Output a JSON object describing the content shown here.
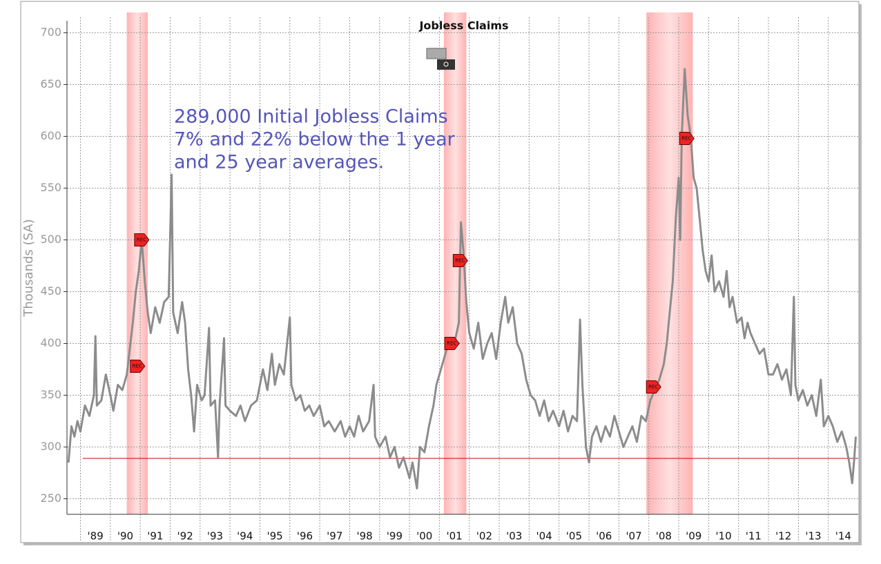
{
  "chart_data": {
    "type": "line",
    "title": "Jobless Claims",
    "y_label": "Thousands (SA)",
    "annotation": [
      "289,000 Initial Jobless Claims",
      "7% and 22% below the 1 year",
      "and 25 year averages."
    ],
    "color": "#8c8c8c",
    "x": [
      1988.6,
      1988.7,
      1988.8,
      1988.9,
      1989.0,
      1989.15,
      1989.3,
      1989.45,
      1989.5,
      1989.55,
      1989.7,
      1989.85,
      1990.0,
      1990.1,
      1990.25,
      1990.4,
      1990.55,
      1990.65,
      1990.75,
      1990.85,
      1990.95,
      1991.05,
      1991.15,
      1991.25,
      1991.35,
      1991.5,
      1991.65,
      1991.8,
      1991.95,
      1992.05,
      1992.1,
      1992.25,
      1992.4,
      1992.5,
      1992.6,
      1992.7,
      1992.8,
      1992.9,
      1993.05,
      1993.15,
      1993.3,
      1993.35,
      1993.5,
      1993.6,
      1993.65,
      1993.8,
      1993.85,
      1994.0,
      1994.2,
      1994.35,
      1994.5,
      1994.7,
      1994.9,
      1995.1,
      1995.25,
      1995.4,
      1995.5,
      1995.65,
      1995.8,
      1996.0,
      1996.05,
      1996.2,
      1996.35,
      1996.5,
      1996.65,
      1996.8,
      1997.0,
      1997.15,
      1997.3,
      1997.5,
      1997.7,
      1997.85,
      1998.0,
      1998.15,
      1998.3,
      1998.45,
      1998.65,
      1998.8,
      1998.85,
      1999.0,
      1999.2,
      1999.35,
      1999.5,
      1999.65,
      1999.8,
      2000.0,
      2000.1,
      2000.25,
      2000.35,
      2000.5,
      2000.65,
      2000.8,
      2000.9,
      2001.05,
      2001.2,
      2001.35,
      2001.5,
      2001.65,
      2001.72,
      2001.8,
      2001.9,
      2002.0,
      2002.15,
      2002.3,
      2002.45,
      2002.6,
      2002.75,
      2002.9,
      2003.05,
      2003.2,
      2003.3,
      2003.45,
      2003.6,
      2003.75,
      2003.9,
      2004.05,
      2004.2,
      2004.35,
      2004.5,
      2004.65,
      2004.8,
      2005.0,
      2005.15,
      2005.3,
      2005.45,
      2005.6,
      2005.7,
      2005.78,
      2005.9,
      2006.0,
      2006.1,
      2006.25,
      2006.4,
      2006.55,
      2006.7,
      2006.85,
      2007.0,
      2007.15,
      2007.3,
      2007.45,
      2007.6,
      2007.75,
      2007.9,
      2008.05,
      2008.2,
      2008.35,
      2008.5,
      2008.6,
      2008.7,
      2008.8,
      2008.9,
      2009.0,
      2009.05,
      2009.1,
      2009.2,
      2009.3,
      2009.4,
      2009.5,
      2009.6,
      2009.7,
      2009.8,
      2009.9,
      2010.0,
      2010.1,
      2010.2,
      2010.35,
      2010.5,
      2010.6,
      2010.7,
      2010.8,
      2010.95,
      2011.1,
      2011.2,
      2011.3,
      2011.4,
      2011.55,
      2011.7,
      2011.85,
      2012.0,
      2012.15,
      2012.3,
      2012.45,
      2012.6,
      2012.75,
      2012.85,
      2012.9,
      2013.0,
      2013.15,
      2013.3,
      2013.45,
      2013.6,
      2013.75,
      2013.85,
      2014.0,
      2014.15,
      2014.3,
      2014.45,
      2014.6,
      2014.7,
      2014.8,
      2014.87,
      2014.92
    ],
    "values": [
      285,
      320,
      310,
      325,
      315,
      340,
      330,
      350,
      407,
      340,
      345,
      370,
      350,
      335,
      360,
      355,
      370,
      395,
      420,
      450,
      470,
      500,
      460,
      430,
      410,
      435,
      420,
      440,
      445,
      563,
      430,
      410,
      440,
      420,
      375,
      350,
      315,
      360,
      345,
      350,
      415,
      340,
      345,
      290,
      340,
      405,
      340,
      335,
      330,
      340,
      325,
      340,
      345,
      375,
      355,
      390,
      360,
      380,
      370,
      425,
      360,
      345,
      350,
      335,
      340,
      330,
      340,
      320,
      325,
      315,
      325,
      310,
      320,
      310,
      330,
      315,
      325,
      360,
      310,
      300,
      310,
      290,
      300,
      280,
      290,
      270,
      285,
      260,
      300,
      295,
      320,
      340,
      360,
      375,
      390,
      405,
      400,
      420,
      517,
      490,
      440,
      410,
      395,
      420,
      385,
      400,
      410,
      385,
      420,
      445,
      420,
      435,
      400,
      390,
      365,
      350,
      345,
      330,
      345,
      325,
      335,
      320,
      335,
      315,
      330,
      325,
      423,
      360,
      300,
      285,
      310,
      320,
      305,
      320,
      310,
      330,
      315,
      300,
      310,
      320,
      305,
      330,
      325,
      345,
      355,
      365,
      380,
      400,
      430,
      460,
      520,
      560,
      500,
      600,
      665,
      620,
      600,
      560,
      550,
      520,
      490,
      470,
      460,
      485,
      450,
      460,
      445,
      470,
      435,
      445,
      420,
      425,
      405,
      420,
      410,
      400,
      390,
      395,
      370,
      370,
      380,
      365,
      375,
      350,
      445,
      360,
      345,
      355,
      340,
      350,
      330,
      365,
      320,
      330,
      320,
      305,
      315,
      300,
      285,
      265,
      290,
      310
    ],
    "xlim": [
      1988.55,
      2015.0
    ],
    "ylim": [
      235,
      715
    ],
    "yticks": [
      250,
      300,
      350,
      400,
      450,
      500,
      550,
      600,
      650,
      700
    ],
    "xticks": [
      {
        "value": 1989,
        "label": "'89"
      },
      {
        "value": 1990,
        "label": "'90"
      },
      {
        "value": 1991,
        "label": "'91"
      },
      {
        "value": 1992,
        "label": "'92"
      },
      {
        "value": 1993,
        "label": "'93"
      },
      {
        "value": 1994,
        "label": "'94"
      },
      {
        "value": 1995,
        "label": "'95"
      },
      {
        "value": 1996,
        "label": "'96"
      },
      {
        "value": 1997,
        "label": "'97"
      },
      {
        "value": 1998,
        "label": "'98"
      },
      {
        "value": 1999,
        "label": "'99"
      },
      {
        "value": 2000,
        "label": "'00"
      },
      {
        "value": 2001,
        "label": "'01"
      },
      {
        "value": 2002,
        "label": "'02"
      },
      {
        "value": 2003,
        "label": "'03"
      },
      {
        "value": 2004,
        "label": "'04"
      },
      {
        "value": 2005,
        "label": "'05"
      },
      {
        "value": 2006,
        "label": "'06"
      },
      {
        "value": 2007,
        "label": "'07"
      },
      {
        "value": 2008,
        "label": "'08"
      },
      {
        "value": 2009,
        "label": "'09"
      },
      {
        "value": 2010,
        "label": "'10"
      },
      {
        "value": 2011,
        "label": "'11"
      },
      {
        "value": 2012,
        "label": "'12"
      },
      {
        "value": 2013,
        "label": "'13"
      },
      {
        "value": 2014,
        "label": "'14"
      }
    ],
    "grid": true,
    "reference_line": {
      "value": 289,
      "color": "#cc0000"
    },
    "shaded_ranges": [
      [
        1990.55,
        1991.25
      ],
      [
        2001.15,
        2001.9
      ],
      [
        2007.92,
        2009.47
      ]
    ],
    "shade_color": "#ff9999",
    "markers": [
      {
        "x": 1990.9,
        "y": 378,
        "label": "REC"
      },
      {
        "x": 1991.04,
        "y": 500,
        "label": "REC"
      },
      {
        "x": 2001.41,
        "y": 400,
        "label": "REC"
      },
      {
        "x": 2001.69,
        "y": 480,
        "label": "REC"
      },
      {
        "x": 2008.15,
        "y": 358,
        "label": "REC"
      },
      {
        "x": 2009.26,
        "y": 598,
        "label": "REC"
      }
    ]
  }
}
